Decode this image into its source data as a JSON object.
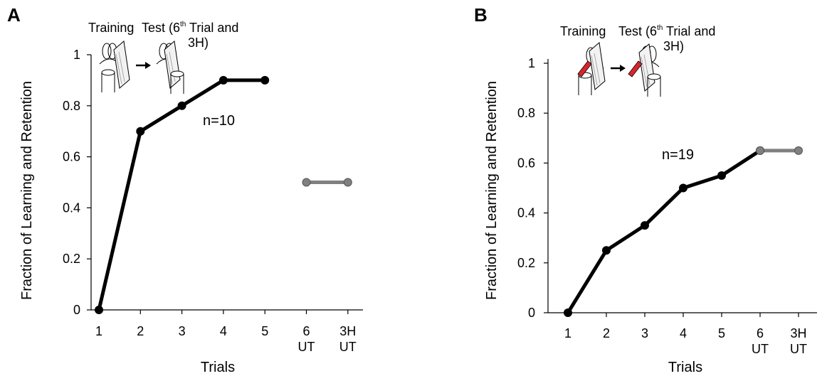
{
  "chart_data": [
    {
      "panel_label": "A",
      "type": "line",
      "categories": [
        "1",
        "2",
        "3",
        "4",
        "5",
        "6\nUT",
        "3H\nUT"
      ],
      "series": [
        {
          "values": [
            0,
            0.7,
            0.8,
            0.9,
            0.9,
            null,
            null
          ],
          "color": "#000000"
        },
        {
          "values": [
            null,
            null,
            null,
            null,
            null,
            0.5,
            0.5
          ],
          "color": "#808080"
        }
      ],
      "yticks": [
        "0",
        "0.2",
        "0.4",
        "0.6",
        "0.8",
        "1"
      ],
      "ylim": [
        0,
        1
      ],
      "xlabel": "Trials",
      "ylabel": "Fraction of Learning and Retention",
      "annotation": "n=10",
      "inset": {
        "label_training": "Training",
        "label_test": "Test (6",
        "superscript": "th",
        "label_rest": " Trial and",
        "label_line2": "3H)"
      }
    },
    {
      "panel_label": "B",
      "type": "line",
      "categories": [
        "1",
        "2",
        "3",
        "4",
        "5",
        "6\nUT",
        "3H\nUT"
      ],
      "series": [
        {
          "values": [
            0,
            0.25,
            0.35,
            0.5,
            0.55,
            0.65,
            null
          ],
          "color": "#000000"
        },
        {
          "values": [
            null,
            null,
            null,
            null,
            null,
            0.65,
            0.65
          ],
          "color": "#808080"
        }
      ],
      "yticks": [
        "0",
        "0.2",
        "0.4",
        "0.6",
        "0.8",
        "1"
      ],
      "ylim": [
        0,
        1
      ],
      "xlabel": "Trials",
      "ylabel": "Fraction of Learning and Retention",
      "annotation": "n=19",
      "inset": {
        "label_training": "Training",
        "label_test": "Test (6",
        "superscript": "th",
        "label_rest": " Trial and",
        "label_line2": "3H)"
      }
    }
  ]
}
